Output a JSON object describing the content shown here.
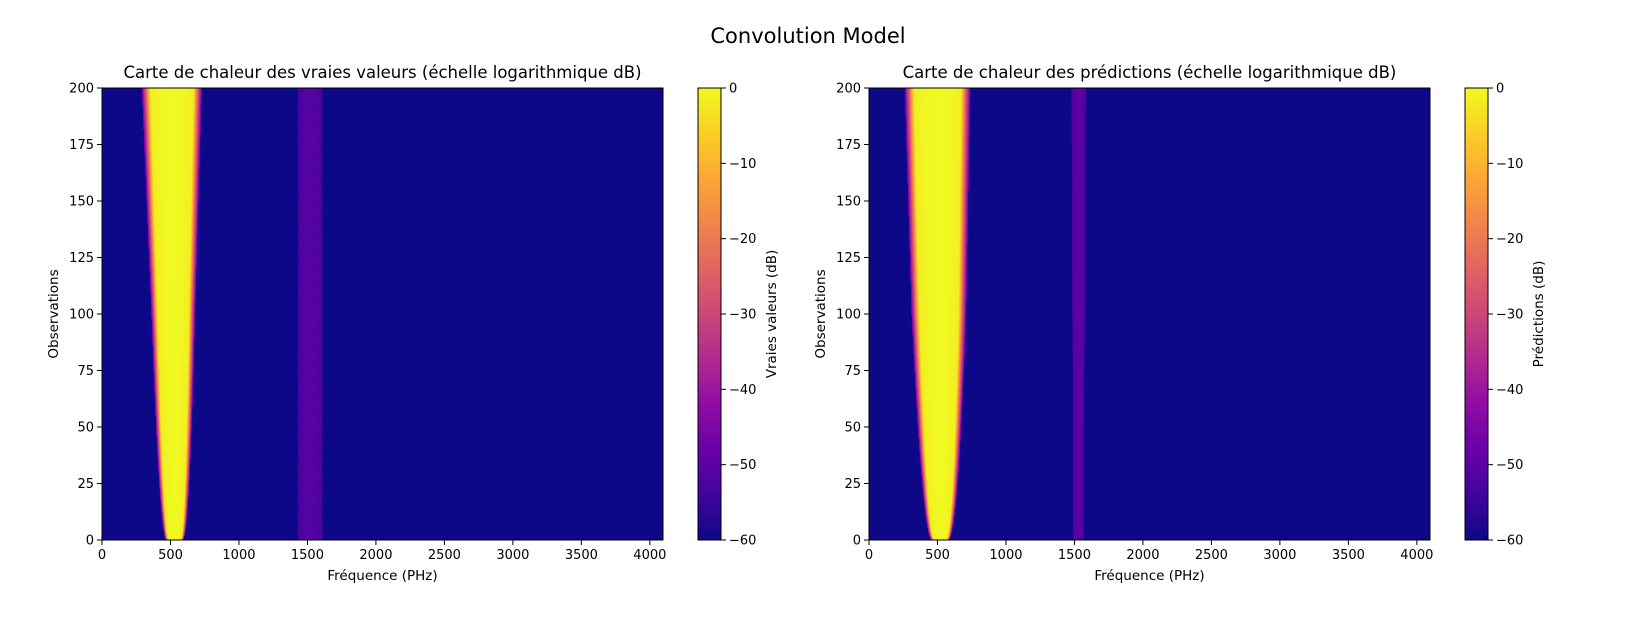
{
  "suptitle": "Convolution Model",
  "chart_data": [
    {
      "type": "heatmap",
      "title": "Carte de chaleur des vraies valeurs (échelle logarithmique dB)",
      "xlabel": "Fréquence (PHz)",
      "ylabel": "Observations",
      "colorbar_label": "Vraies valeurs (dB)",
      "xlim": [
        0,
        4096
      ],
      "ylim": [
        0,
        200
      ],
      "clim": [
        -60,
        0
      ],
      "colormap": "plasma",
      "x_ticks": [
        0,
        500,
        1000,
        1500,
        2000,
        2500,
        3000,
        3500,
        4000
      ],
      "y_ticks": [
        0,
        25,
        50,
        75,
        100,
        125,
        150,
        175,
        200
      ],
      "colorbar_ticks": [
        0,
        -10,
        -20,
        -30,
        -40,
        -50,
        -60
      ],
      "bands": [
        {
          "center_freq_at_obs0": 530,
          "center_freq_at_obs200": 510,
          "halfwidth_at_obs0": 60,
          "halfwidth_at_obs100": 160,
          "halfwidth_at_obs200": 220,
          "peak_db": 0
        },
        {
          "center_freq_at_obs0": 1520,
          "center_freq_at_obs200": 1520,
          "halfwidth_at_obs0": 120,
          "halfwidth_at_obs200": 120,
          "peak_db": -48,
          "fringes": true
        }
      ]
    },
    {
      "type": "heatmap",
      "title": "Carte de chaleur des prédictions (échelle logarithmique dB)",
      "xlabel": "Fréquence (PHz)",
      "ylabel": "Observations",
      "colorbar_label": "Prédictions (dB)",
      "xlim": [
        0,
        4096
      ],
      "ylim": [
        0,
        200
      ],
      "clim": [
        -60,
        0
      ],
      "colormap": "plasma",
      "x_ticks": [
        0,
        500,
        1000,
        1500,
        2000,
        2500,
        3000,
        3500,
        4000
      ],
      "y_ticks": [
        0,
        25,
        50,
        75,
        100,
        125,
        150,
        175,
        200
      ],
      "colorbar_ticks": [
        0,
        -10,
        -20,
        -30,
        -40,
        -50,
        -60
      ],
      "bands": [
        {
          "center_freq_at_obs0": 520,
          "center_freq_at_obs200": 500,
          "halfwidth_at_obs0": 60,
          "halfwidth_at_obs100": 200,
          "halfwidth_at_obs200": 240,
          "peak_db": 0
        },
        {
          "center_freq_at_obs0": 1530,
          "center_freq_at_obs200": 1530,
          "halfwidth_at_obs0": 50,
          "halfwidth_at_obs200": 70,
          "peak_db": -50,
          "fringes": false
        }
      ]
    }
  ]
}
